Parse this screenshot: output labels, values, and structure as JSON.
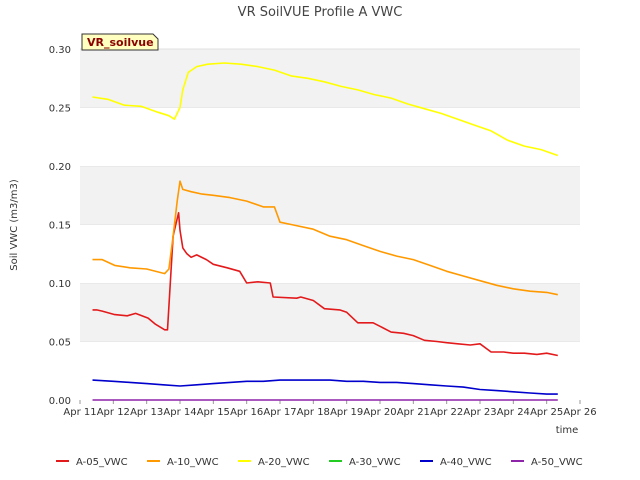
{
  "chart_data": {
    "type": "line",
    "title": "VR SoilVUE Profile A VWC",
    "xlabel": "time",
    "ylabel": "Soil VWC (m3/m3)",
    "badge": "VR_soilvue",
    "x_tick_labels": [
      "Apr 11",
      "Apr 12",
      "Apr 13",
      "Apr 14",
      "Apr 15",
      "Apr 16",
      "Apr 17",
      "Apr 18",
      "Apr 19",
      "Apr 20",
      "Apr 21",
      "Apr 22",
      "Apr 23",
      "Apr 24",
      "Apr 25",
      "Apr 26"
    ],
    "y_tick_labels": [
      "0.00",
      "0.05",
      "0.10",
      "0.15",
      "0.20",
      "0.25",
      "0.30"
    ],
    "y_ticks": [
      0.0,
      0.05,
      0.1,
      0.15,
      0.2,
      0.25,
      0.3
    ],
    "xlim": [
      "2024-04-11",
      "2024-04-26"
    ],
    "ylim": [
      0,
      0.3
    ],
    "grid": "horizontal alternating bands",
    "legend_position": "bottom",
    "series": [
      {
        "name": "A-05_VWC",
        "color": "#e31a1c",
        "x": [
          "2024-04-11T09:00",
          "2024-04-11T12:00",
          "2024-04-11T16:00",
          "2024-04-12T01:00",
          "2024-04-12T10:00",
          "2024-04-12T16:00",
          "2024-04-13T01:00",
          "2024-04-13T06:00",
          "2024-04-13T13:00",
          "2024-04-13T15:00",
          "2024-04-13T17:00",
          "2024-04-13T19:00",
          "2024-04-13T21:00",
          "2024-04-13T23:00",
          "2024-04-14T00:00",
          "2024-04-14T02:00",
          "2024-04-14T05:00",
          "2024-04-14T08:00",
          "2024-04-14T12:00",
          "2024-04-14T19:00",
          "2024-04-15T00:00",
          "2024-04-15T10:00",
          "2024-04-15T19:00",
          "2024-04-16T00:00",
          "2024-04-16T08:00",
          "2024-04-16T17:00",
          "2024-04-16T19:00",
          "2024-04-17T12:00",
          "2024-04-17T15:00",
          "2024-04-18T00:00",
          "2024-04-18T08:00",
          "2024-04-18T19:00",
          "2024-04-19T00:00",
          "2024-04-19T08:00",
          "2024-04-19T19:00",
          "2024-04-20T00:00",
          "2024-04-20T08:00",
          "2024-04-20T17:00",
          "2024-04-21T00:00",
          "2024-04-21T08:00",
          "2024-04-21T17:00",
          "2024-04-22T00:00",
          "2024-04-22T08:00",
          "2024-04-22T17:00",
          "2024-04-23T00:00",
          "2024-04-23T08:00",
          "2024-04-23T17:00",
          "2024-04-24T00:00",
          "2024-04-24T08:00",
          "2024-04-24T17:00",
          "2024-04-25T00:00",
          "2024-04-25T08:00"
        ],
        "y": [
          0.077,
          0.077,
          0.076,
          0.073,
          0.072,
          0.074,
          0.07,
          0.065,
          0.06,
          0.06,
          0.1,
          0.14,
          0.15,
          0.16,
          0.145,
          0.13,
          0.125,
          0.122,
          0.124,
          0.12,
          0.116,
          0.113,
          0.11,
          0.1,
          0.101,
          0.1,
          0.088,
          0.087,
          0.088,
          0.085,
          0.078,
          0.077,
          0.075,
          0.066,
          0.066,
          0.063,
          0.058,
          0.057,
          0.055,
          0.051,
          0.05,
          0.049,
          0.048,
          0.047,
          0.048,
          0.041,
          0.041,
          0.04,
          0.04,
          0.039,
          0.04,
          0.038
        ]
      },
      {
        "name": "A-10_VWC",
        "color": "#ff9900",
        "x": [
          "2024-04-11T09:00",
          "2024-04-11T16:00",
          "2024-04-12T01:00",
          "2024-04-12T12:00",
          "2024-04-13T00:00",
          "2024-04-13T13:00",
          "2024-04-13T16:00",
          "2024-04-13T19:00",
          "2024-04-13T22:00",
          "2024-04-14T00:00",
          "2024-04-14T02:00",
          "2024-04-14T08:00",
          "2024-04-14T16:00",
          "2024-04-15T00:00",
          "2024-04-15T12:00",
          "2024-04-16T00:00",
          "2024-04-16T12:00",
          "2024-04-16T20:00",
          "2024-04-17T00:00",
          "2024-04-17T08:00",
          "2024-04-18T00:00",
          "2024-04-18T12:00",
          "2024-04-19T00:00",
          "2024-04-19T12:00",
          "2024-04-20T00:00",
          "2024-04-20T12:00",
          "2024-04-21T00:00",
          "2024-04-21T12:00",
          "2024-04-22T00:00",
          "2024-04-22T12:00",
          "2024-04-23T00:00",
          "2024-04-23T12:00",
          "2024-04-24T00:00",
          "2024-04-24T12:00",
          "2024-04-25T00:00",
          "2024-04-25T08:00"
        ],
        "y": [
          0.12,
          0.12,
          0.115,
          0.113,
          0.112,
          0.108,
          0.112,
          0.14,
          0.17,
          0.187,
          0.18,
          0.178,
          0.176,
          0.175,
          0.173,
          0.17,
          0.165,
          0.165,
          0.152,
          0.15,
          0.146,
          0.14,
          0.137,
          0.132,
          0.127,
          0.123,
          0.12,
          0.115,
          0.11,
          0.106,
          0.102,
          0.098,
          0.095,
          0.093,
          0.092,
          0.09
        ]
      },
      {
        "name": "A-20_VWC",
        "color": "#ffff00",
        "x": [
          "2024-04-11T09:00",
          "2024-04-11T20:00",
          "2024-04-12T08:00",
          "2024-04-12T20:00",
          "2024-04-13T08:00",
          "2024-04-13T16:00",
          "2024-04-13T20:00",
          "2024-04-14T00:00",
          "2024-04-14T02:00",
          "2024-04-14T06:00",
          "2024-04-14T12:00",
          "2024-04-14T20:00",
          "2024-04-15T08:00",
          "2024-04-15T20:00",
          "2024-04-16T08:00",
          "2024-04-16T20:00",
          "2024-04-17T08:00",
          "2024-04-17T20:00",
          "2024-04-18T08:00",
          "2024-04-18T20:00",
          "2024-04-19T08:00",
          "2024-04-19T20:00",
          "2024-04-20T08:00",
          "2024-04-20T20:00",
          "2024-04-21T08:00",
          "2024-04-21T20:00",
          "2024-04-22T08:00",
          "2024-04-22T20:00",
          "2024-04-23T08:00",
          "2024-04-23T20:00",
          "2024-04-24T08:00",
          "2024-04-24T20:00",
          "2024-04-25T08:00"
        ],
        "y": [
          0.259,
          0.257,
          0.252,
          0.251,
          0.246,
          0.243,
          0.24,
          0.25,
          0.265,
          0.28,
          0.285,
          0.287,
          0.288,
          0.287,
          0.285,
          0.282,
          0.277,
          0.275,
          0.272,
          0.268,
          0.265,
          0.261,
          0.258,
          0.253,
          0.249,
          0.245,
          0.24,
          0.235,
          0.23,
          0.222,
          0.217,
          0.214,
          0.209
        ]
      },
      {
        "name": "A-30_VWC",
        "color": "#22cc22",
        "x": [],
        "y": []
      },
      {
        "name": "A-40_VWC",
        "color": "#0000cc",
        "x": [
          "2024-04-11T09:00",
          "2024-04-12T00:00",
          "2024-04-12T12:00",
          "2024-04-13T00:00",
          "2024-04-13T12:00",
          "2024-04-14T00:00",
          "2024-04-14T12:00",
          "2024-04-15T00:00",
          "2024-04-15T12:00",
          "2024-04-16T00:00",
          "2024-04-16T12:00",
          "2024-04-17T00:00",
          "2024-04-17T12:00",
          "2024-04-18T00:00",
          "2024-04-18T12:00",
          "2024-04-19T00:00",
          "2024-04-19T12:00",
          "2024-04-20T00:00",
          "2024-04-20T12:00",
          "2024-04-21T00:00",
          "2024-04-21T12:00",
          "2024-04-22T00:00",
          "2024-04-22T12:00",
          "2024-04-23T00:00",
          "2024-04-23T12:00",
          "2024-04-24T00:00",
          "2024-04-24T12:00",
          "2024-04-25T00:00",
          "2024-04-25T08:00"
        ],
        "y": [
          0.017,
          0.016,
          0.015,
          0.014,
          0.013,
          0.012,
          0.013,
          0.014,
          0.015,
          0.016,
          0.016,
          0.017,
          0.017,
          0.017,
          0.017,
          0.016,
          0.016,
          0.015,
          0.015,
          0.014,
          0.013,
          0.012,
          0.011,
          0.009,
          0.008,
          0.007,
          0.006,
          0.005,
          0.005
        ]
      },
      {
        "name": "A-50_VWC",
        "color": "#8e24aa",
        "x": [
          "2024-04-11T09:00",
          "2024-04-25T08:00"
        ],
        "y": [
          0.0,
          0.0
        ]
      }
    ]
  }
}
